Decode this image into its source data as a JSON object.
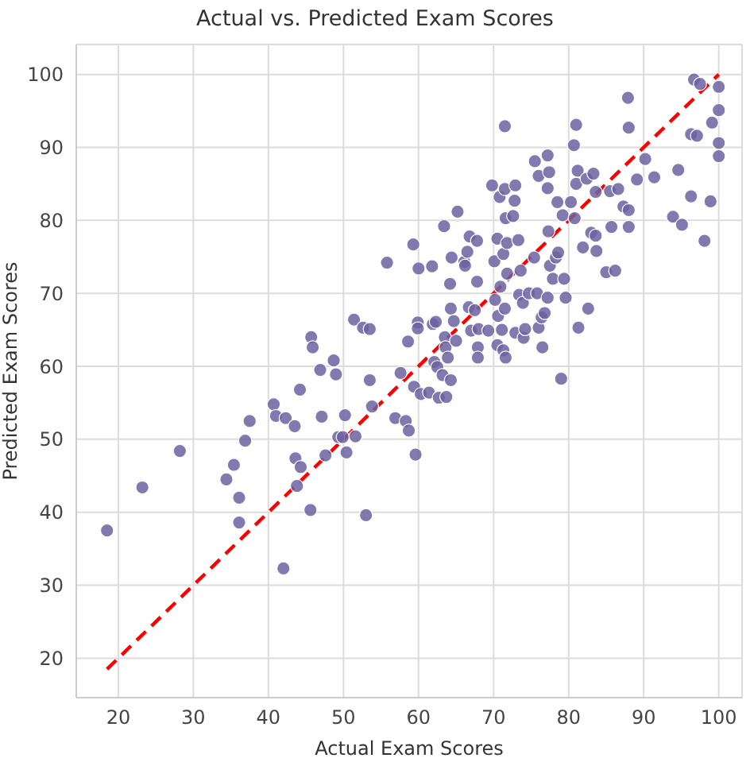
{
  "chart_data": {
    "type": "scatter",
    "title": "Actual vs. Predicted Exam Scores",
    "xlabel": "Actual Exam Scores",
    "ylabel": "Predicted Exam Scores",
    "xlim": [
      14.4,
      103.1
    ],
    "ylim": [
      14.6,
      104.1
    ],
    "xticks": [
      20,
      30,
      40,
      50,
      60,
      70,
      80,
      90,
      100
    ],
    "yticks": [
      20,
      30,
      40,
      50,
      60,
      70,
      80,
      90,
      100
    ],
    "grid": true,
    "series": [
      {
        "type": "scatter",
        "color": "#6c62a0",
        "marker": "circle",
        "x": [
          18.5,
          23.2,
          28.2,
          34.4,
          35.4,
          36.1,
          36.1,
          36.9,
          37.5,
          40.7,
          41.0,
          42.3,
          42.0,
          43.5,
          43.6,
          43.8,
          44.3,
          44.2,
          45.6,
          45.7,
          45.9,
          46.9,
          47.1,
          47.6,
          48.7,
          49.0,
          49.3,
          49.9,
          50.2,
          50.4,
          51.4,
          51.6,
          52.6,
          53.0,
          53.5,
          53.5,
          53.8,
          55.8,
          56.9,
          57.6,
          58.3,
          58.6,
          58.7,
          59.3,
          59.4,
          59.6,
          59.9,
          59.9,
          60.0,
          60.3,
          61.4,
          61.8,
          61.9,
          62.3,
          62.1,
          62.5,
          62.7,
          63.2,
          63.4,
          63.5,
          63.6,
          63.7,
          63.9,
          64.2,
          64.3,
          64.3,
          64.4,
          64.7,
          65.0,
          65.2,
          66.1,
          66.2,
          66.5,
          66.7,
          66.8,
          67.0,
          67.5,
          67.8,
          67.8,
          67.9,
          67.9,
          68.0,
          69.3,
          69.8,
          70.1,
          70.2,
          70.5,
          70.5,
          70.6,
          70.8,
          70.9,
          71.1,
          71.3,
          71.3,
          71.5,
          71.5,
          71.5,
          71.6,
          71.6,
          71.8,
          71.8,
          72.6,
          72.8,
          72.9,
          72.9,
          73.3,
          73.4,
          73.6,
          73.9,
          74.0,
          74.2,
          74.7,
          75.4,
          75.5,
          75.8,
          76.0,
          76.0,
          76.4,
          76.5,
          76.8,
          77.2,
          77.2,
          77.3,
          77.4,
          77.5,
          77.2,
          77.9,
          78.3,
          78.5,
          78.6,
          79.0,
          79.2,
          79.4,
          79.6,
          80.3,
          80.7,
          80.8,
          81.0,
          81.0,
          81.2,
          81.3,
          81.9,
          82.4,
          82.6,
          83.0,
          83.3,
          83.6,
          83.7,
          83.6,
          85.0,
          85.5,
          85.7,
          86.2,
          86.6,
          87.3,
          87.9,
          88.0,
          88.0,
          88.0,
          89.1,
          90.2,
          91.4,
          93.9,
          94.6,
          95.1,
          96.3,
          96.3,
          96.7,
          97.1,
          97.5,
          98.1,
          98.9,
          99.1,
          100,
          100,
          100,
          100
        ],
        "values": [
          37.5,
          43.4,
          48.4,
          44.5,
          46.5,
          42.0,
          38.6,
          49.8,
          52.5,
          54.8,
          53.2,
          52.9,
          32.3,
          51.8,
          47.4,
          43.6,
          46.2,
          56.8,
          40.3,
          64.0,
          62.6,
          59.5,
          53.1,
          47.8,
          60.8,
          58.9,
          50.3,
          50.3,
          53.3,
          48.2,
          66.4,
          50.4,
          65.3,
          39.6,
          65.1,
          58.1,
          54.5,
          74.2,
          52.9,
          59.1,
          52.5,
          63.4,
          51.2,
          76.7,
          57.2,
          47.9,
          66.0,
          65.2,
          73.4,
          56.2,
          56.4,
          73.7,
          65.8,
          66.1,
          60.6,
          59.9,
          55.7,
          58.8,
          79.2,
          64.0,
          62.6,
          55.8,
          61.2,
          71.3,
          67.9,
          58.1,
          74.9,
          66.2,
          63.5,
          81.2,
          74.3,
          73.8,
          75.7,
          68.1,
          77.8,
          64.9,
          67.7,
          77.2,
          71.6,
          62.6,
          61.2,
          65.1,
          64.9,
          84.8,
          74.4,
          69.1,
          77.5,
          62.9,
          66.9,
          83.2,
          70.9,
          65.0,
          75.4,
          62.2,
          92.9,
          84.3,
          67.9,
          80.3,
          61.2,
          72.7,
          76.9,
          80.6,
          82.7,
          84.8,
          64.6,
          77.3,
          69.8,
          73.1,
          68.7,
          63.9,
          65.1,
          70.0,
          74.9,
          88.1,
          70.0,
          86.1,
          65.3,
          66.7,
          62.6,
          67.3,
          84.4,
          88.9,
          78.5,
          86.6,
          73.8,
          69.4,
          72.0,
          74.9,
          82.5,
          75.6,
          58.3,
          80.7,
          72.0,
          69.4,
          82.5,
          90.3,
          80.3,
          93.1,
          85.0,
          86.8,
          65.3,
          76.3,
          85.7,
          67.9,
          78.3,
          86.4,
          77.9,
          75.8,
          83.9,
          72.9,
          84.0,
          79.1,
          73.1,
          84.3,
          81.9,
          96.8,
          92.7,
          81.4,
          79.1,
          85.6,
          88.4,
          85.9,
          80.5,
          86.9,
          79.4,
          91.8,
          83.3,
          99.3,
          91.6,
          98.7,
          77.2,
          82.6,
          93.4,
          98.3,
          95.1,
          90.6,
          88.8
        ]
      },
      {
        "type": "line",
        "color": "#ff0000",
        "line_style": "dashed",
        "marker": "none",
        "x": [
          18.5,
          100
        ],
        "values": [
          18.5,
          100
        ]
      }
    ]
  }
}
